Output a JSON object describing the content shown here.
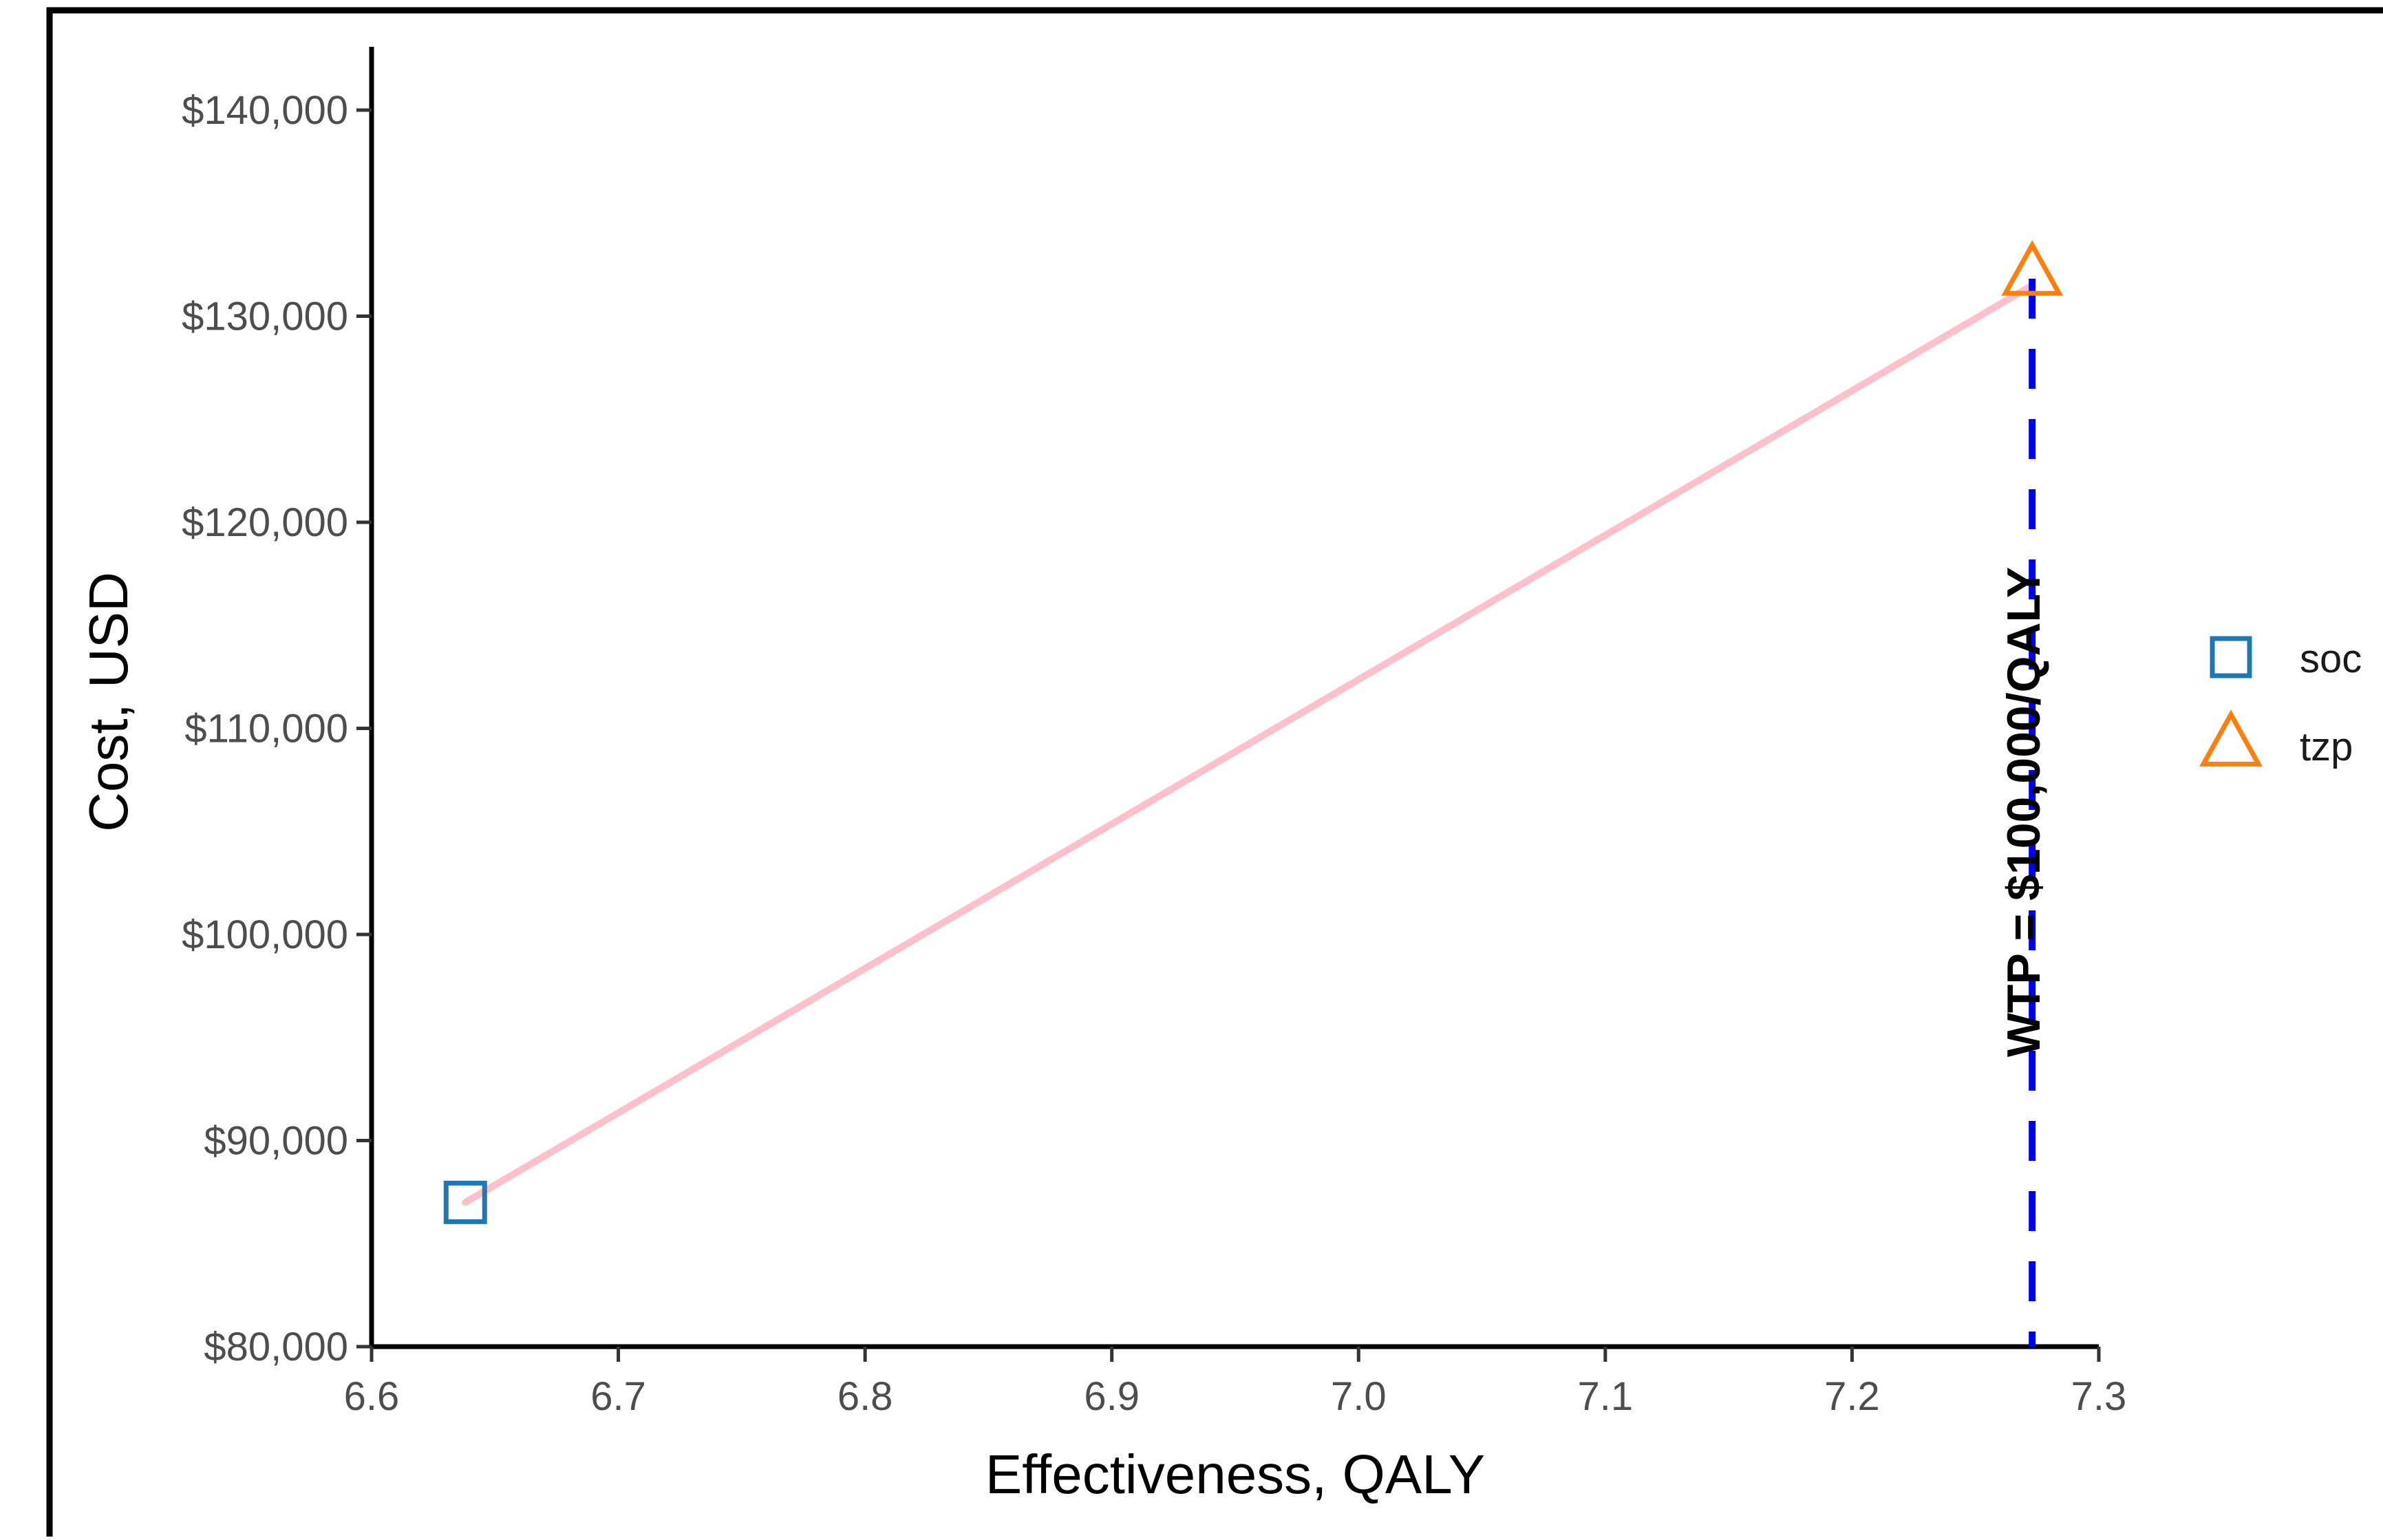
{
  "chart_data": {
    "type": "scatter",
    "title": "",
    "xlabel": "Effectiveness, QALY",
    "ylabel": "Cost, USD",
    "xlim": [
      6.6,
      7.3
    ],
    "ylim": [
      80000,
      140000
    ],
    "x_ticks": [
      6.6,
      6.7,
      6.8,
      6.9,
      7.0,
      7.1,
      7.2,
      7.3
    ],
    "x_tick_labels": [
      "6.6",
      "6.7",
      "6.8",
      "6.9",
      "7.0",
      "7.1",
      "7.2",
      "7.3"
    ],
    "y_ticks": [
      80000,
      90000,
      100000,
      110000,
      120000,
      130000,
      140000
    ],
    "y_tick_labels": [
      "$80,000",
      "$90,000",
      "$100,000",
      "$110,000",
      "$120,000",
      "$130,000",
      "$140,000"
    ],
    "grid": false,
    "legend_position": "right",
    "series": [
      {
        "name": "soc",
        "marker": "square",
        "color": "#1f77b4",
        "x": [
          6.638
        ],
        "y": [
          87000
        ]
      },
      {
        "name": "tzp",
        "marker": "triangle",
        "color": "#ff7f0e",
        "x": [
          7.273
        ],
        "y": [
          132000
        ]
      }
    ],
    "frontier_line": {
      "color": "#ffc0cb",
      "x": [
        6.638,
        7.273
      ],
      "y": [
        87000,
        131500
      ]
    },
    "wtp_line": {
      "x": 7.273,
      "color": "#0000ee",
      "style": "dashed",
      "label": "WTP = $100,000/QALY"
    }
  }
}
